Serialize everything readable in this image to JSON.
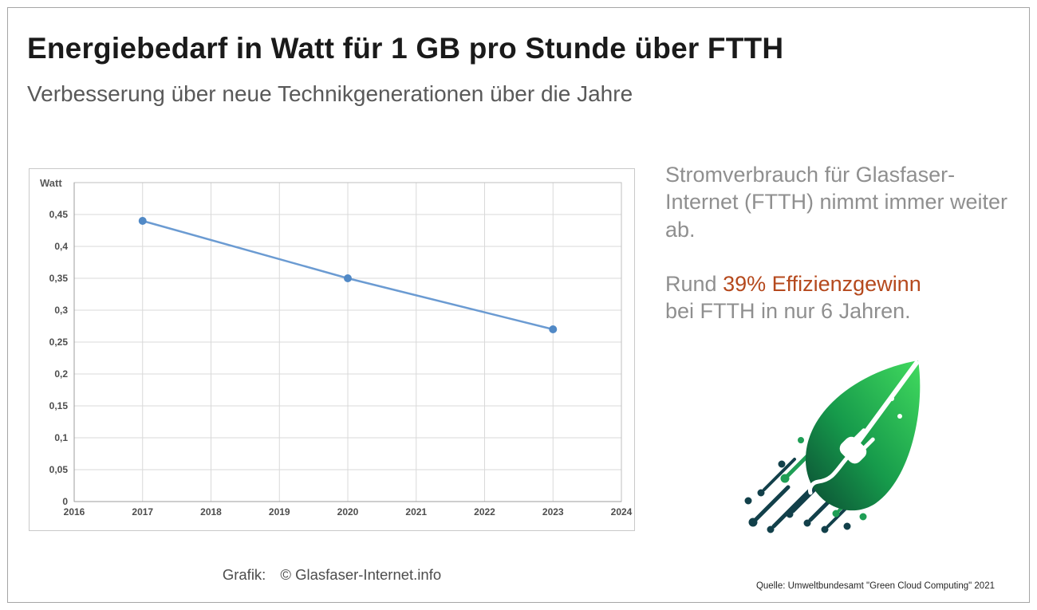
{
  "page": {
    "title": "Energiebedarf in Watt für 1 GB pro Stunde über FTTH",
    "subtitle": "Verbesserung über neue Technikgenerationen über die Jahre",
    "credit_label": "Grafik:",
    "credit_value": "© Glasfaser-Internet.info",
    "source": "Quelle: Umweltbundesamt \"Green Cloud Computing\" 2021"
  },
  "aside": {
    "paragraph1": "Stromverbrauch für Glasfaser-Internet (FTTH) nimmt immer weiter ab.",
    "paragraph2_prefix": "Rund ",
    "paragraph2_highlight": "39% Effizienzgewinn",
    "paragraph2_suffix": "bei FTTH in nur 6 Jahren.",
    "highlight_color": "#b5491d"
  },
  "chart_data": {
    "type": "line",
    "title": "Energiebedarf in Watt für 1 GB pro Stunde über FTTH",
    "ylabel": "Watt",
    "xlabel": "",
    "x": [
      2017,
      2020,
      2023
    ],
    "values": [
      0.44,
      0.35,
      0.27
    ],
    "xlim": [
      2016,
      2024
    ],
    "ylim": [
      0,
      0.5
    ],
    "x_ticks": [
      2016,
      2017,
      2018,
      2019,
      2020,
      2021,
      2022,
      2023,
      2024
    ],
    "y_ticks": [
      0,
      0.05,
      0.1,
      0.15,
      0.2,
      0.25,
      0.3,
      0.35,
      0.4,
      0.45
    ],
    "y_tick_labels": [
      "0",
      "0,05",
      "0,1",
      "0,15",
      "0,2",
      "0,25",
      "0,3",
      "0,35",
      "0,4",
      "0,45"
    ],
    "grid": true,
    "legend_position": "none",
    "line_color": "#6b9bd2",
    "marker_color": "#5189c6",
    "grid_color": "#d9d9d9",
    "plot_border_color": "#bfbfbf"
  }
}
